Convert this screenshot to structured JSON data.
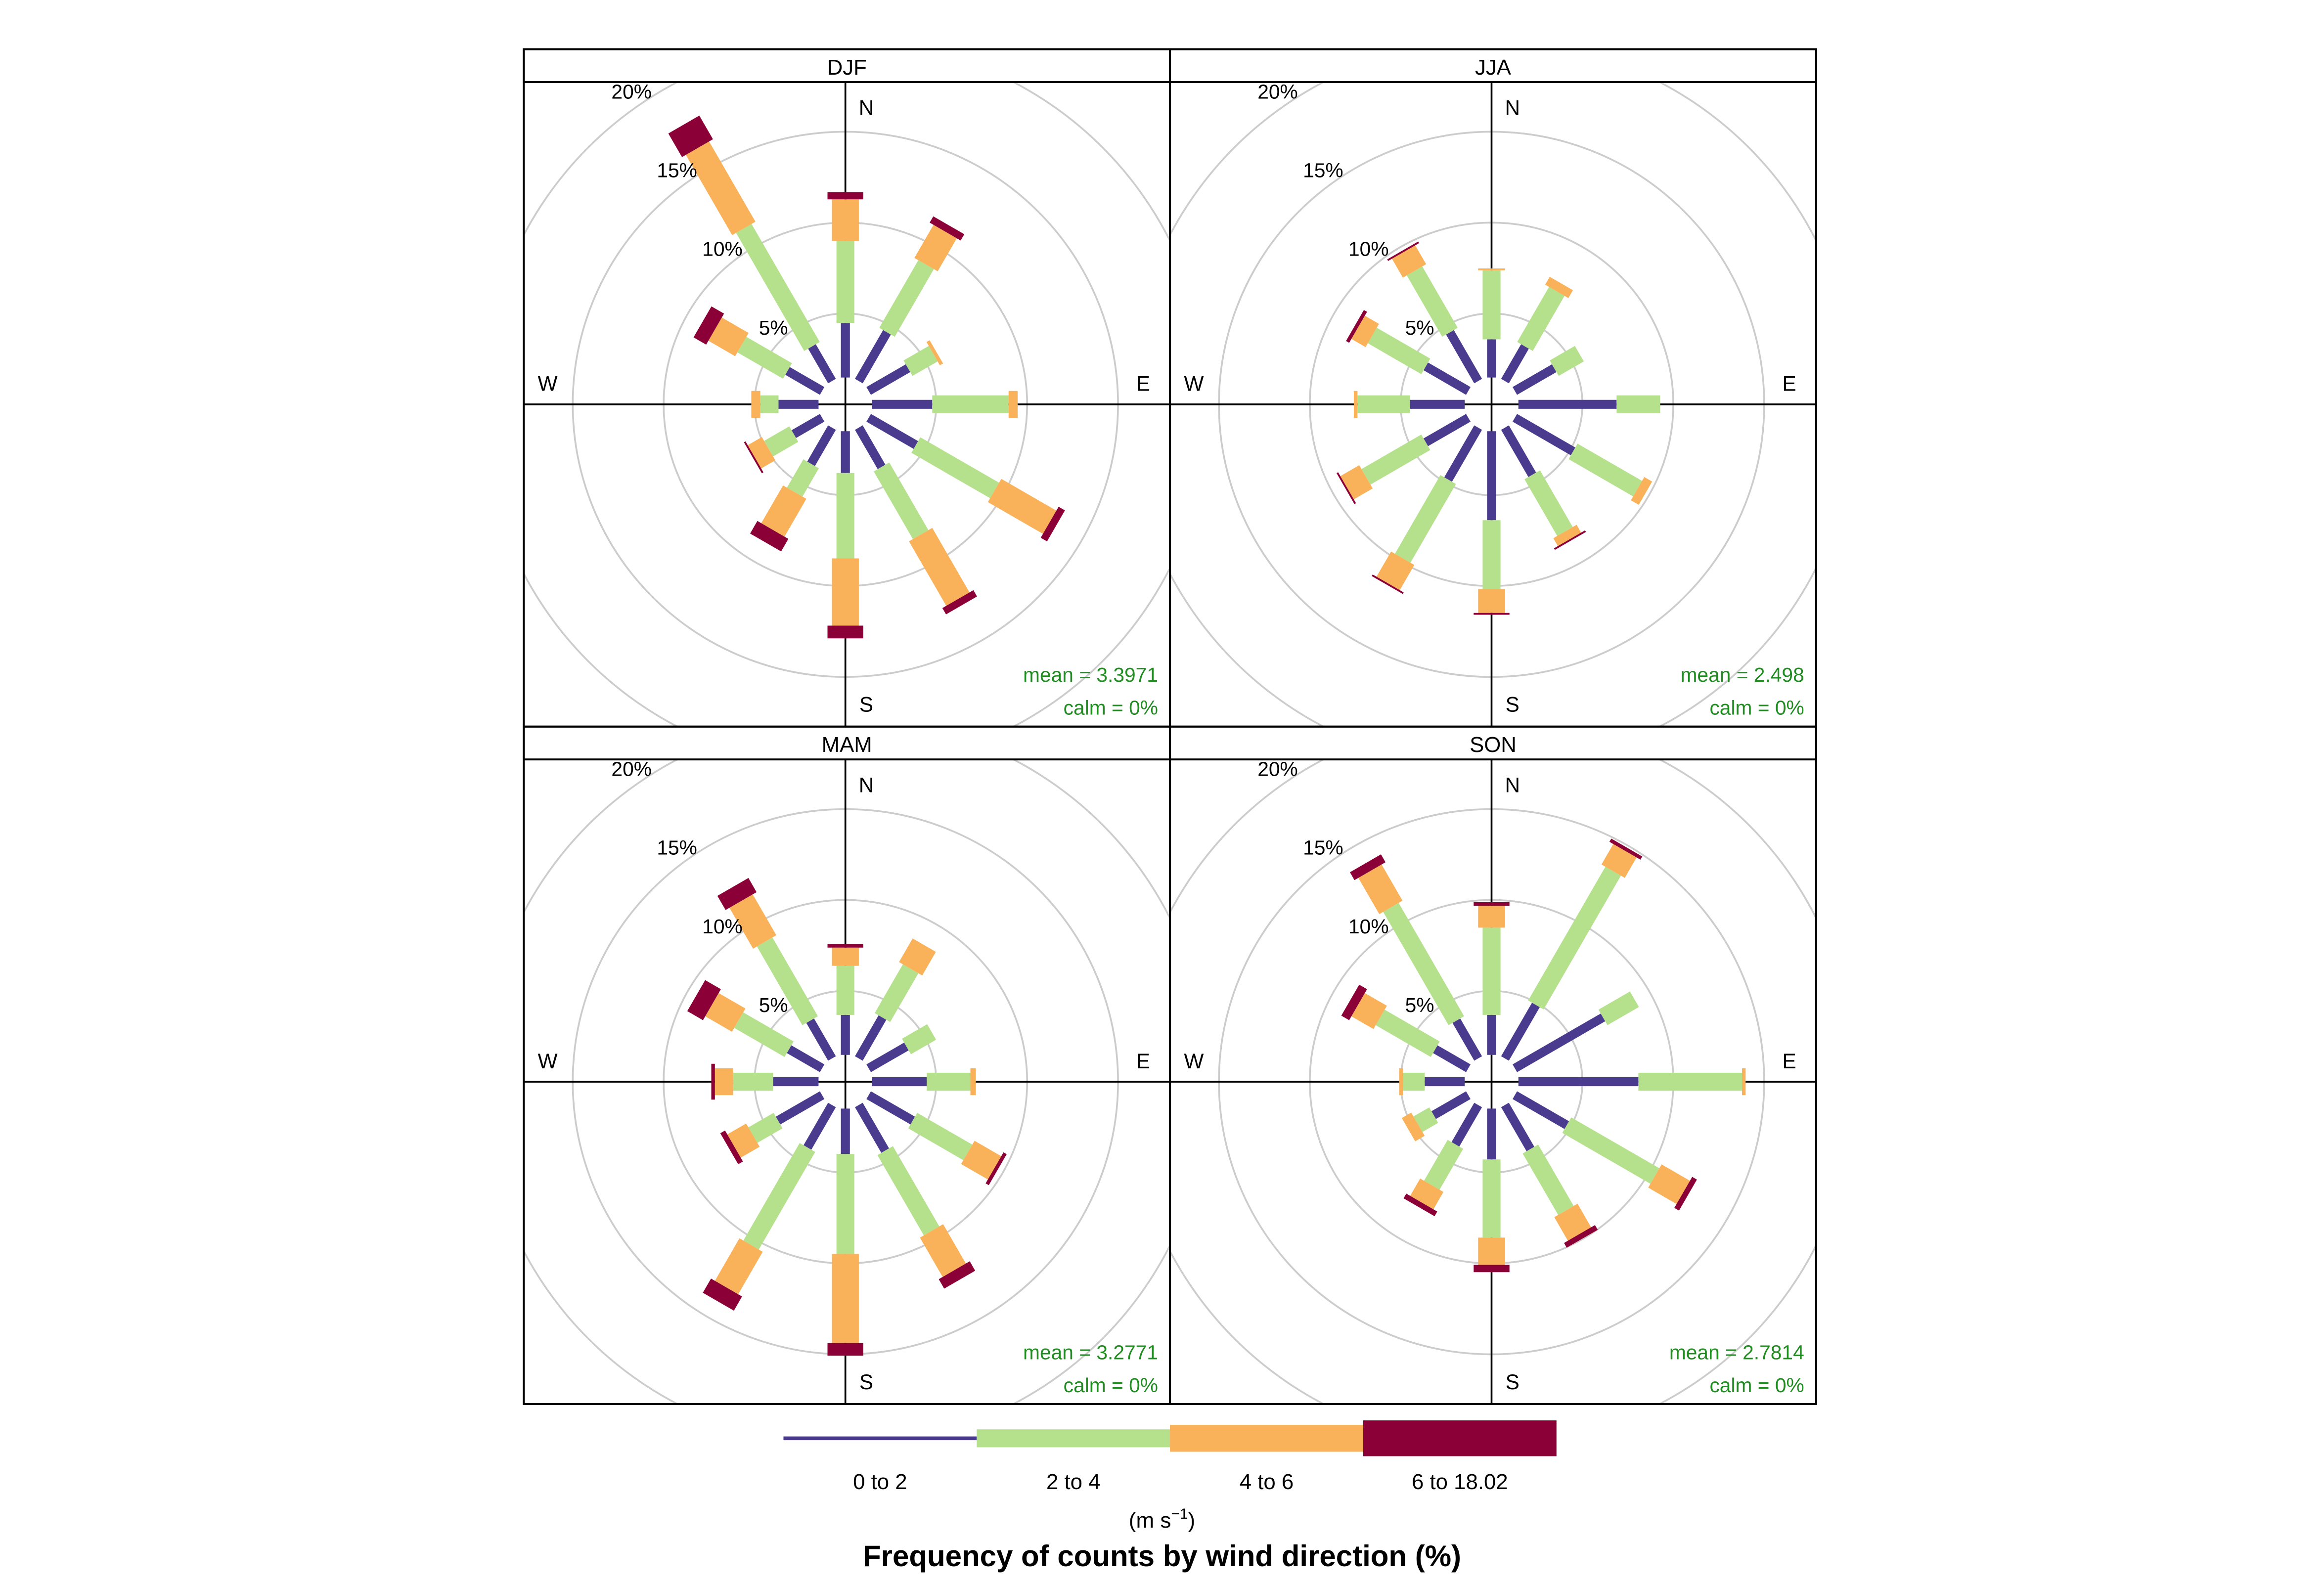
{
  "chart_data": {
    "type": "wind-rose",
    "title": "Frequency of counts by wind direction (%)",
    "units": "(m s",
    "units_superscript": "−1",
    "units_close": ")",
    "directions": [
      0,
      30,
      60,
      90,
      120,
      150,
      180,
      210,
      240,
      270,
      300,
      330
    ],
    "compass": {
      "N": "N",
      "E": "E",
      "S": "S",
      "W": "W"
    },
    "rings": [
      5,
      10,
      15,
      20
    ],
    "ring_labels": [
      "5%",
      "10%",
      "15%",
      "20%"
    ],
    "r_max": 20,
    "legend": {
      "bins": [
        {
          "label": "0 to 2",
          "color": "#4B3B8F"
        },
        {
          "label": "2 to 4",
          "color": "#B5E18D"
        },
        {
          "label": "4 to 6",
          "color": "#F9B25A"
        },
        {
          "label": "6 to 18.02",
          "color": "#8B0036"
        }
      ]
    },
    "panels": [
      {
        "name": "DJF",
        "mean_text": "mean = 3.3971",
        "calm_text": "calm = 0%",
        "cumulative": [
          [
            3.0,
            7.5,
            9.8,
            10.2
          ],
          [
            3.1,
            7.4,
            9.5,
            9.9
          ],
          [
            2.5,
            4.1,
            4.3,
            4.3
          ],
          [
            3.3,
            7.5,
            8.0,
            8.0
          ],
          [
            3.0,
            8.0,
            11.5,
            11.9
          ],
          [
            2.5,
            6.8,
            10.9,
            11.3
          ],
          [
            2.3,
            7.0,
            10.7,
            11.4
          ],
          [
            2.3,
            4.1,
            6.5,
            7.3
          ],
          [
            1.8,
            3.4,
            4.3,
            4.4
          ],
          [
            2.2,
            3.2,
            3.7,
            3.7
          ],
          [
            2.2,
            5.1,
            6.8,
            7.6
          ],
          [
            2.2,
            9.7,
            14.8,
            16.3
          ]
        ]
      },
      {
        "name": "JJA",
        "mean_text": "mean = 2.498",
        "calm_text": "calm = 0%",
        "cumulative": [
          [
            2.1,
            5.9,
            6.0,
            6.0
          ],
          [
            2.2,
            5.7,
            6.2,
            6.2
          ],
          [
            2.5,
            4.1,
            4.1,
            4.1
          ],
          [
            5.4,
            7.8,
            7.8,
            7.8
          ],
          [
            3.7,
            7.8,
            8.3,
            8.3
          ],
          [
            3.0,
            6.6,
            7.1,
            7.2
          ],
          [
            4.9,
            8.7,
            10.0,
            10.1
          ],
          [
            3.3,
            8.3,
            9.9,
            10.0
          ],
          [
            2.7,
            6.5,
            7.7,
            7.8
          ],
          [
            3.0,
            5.9,
            6.1,
            6.1
          ],
          [
            2.7,
            6.1,
            7.0,
            7.2
          ],
          [
            3.1,
            7.0,
            8.2,
            8.3
          ]
        ]
      },
      {
        "name": "MAM",
        "mean_text": "mean = 3.2771",
        "calm_text": "calm = 0%",
        "cumulative": [
          [
            2.2,
            4.9,
            5.9,
            6.1
          ],
          [
            2.6,
            5.7,
            7.2,
            7.2
          ],
          [
            2.4,
            4.0,
            4.0,
            4.0
          ],
          [
            3.0,
            5.4,
            5.7,
            5.7
          ],
          [
            2.8,
            6.3,
            8.0,
            8.2
          ],
          [
            2.9,
            8.0,
            10.5,
            11.1
          ],
          [
            2.5,
            8.0,
            12.9,
            13.6
          ],
          [
            2.7,
            8.9,
            11.6,
            12.5
          ],
          [
            2.8,
            4.4,
            5.6,
            5.9
          ],
          [
            2.5,
            4.7,
            5.7,
            5.9
          ],
          [
            2.1,
            5.3,
            7.0,
            8.0
          ],
          [
            2.4,
            7.4,
            10.0,
            10.9
          ]
        ]
      },
      {
        "name": "SON",
        "mean_text": "mean = 2.7814",
        "calm_text": "calm = 0%",
        "cumulative": [
          [
            2.2,
            7.0,
            8.2,
            8.4
          ],
          [
            3.4,
            11.9,
            13.2,
            13.4
          ],
          [
            5.6,
            7.6,
            7.6,
            7.6
          ],
          [
            6.6,
            12.3,
            12.5,
            12.5
          ],
          [
            3.3,
            8.9,
            10.7,
            11.0
          ],
          [
            2.8,
            6.7,
            8.2,
            8.5
          ],
          [
            2.8,
            7.1,
            8.6,
            9.0
          ],
          [
            2.5,
            5.1,
            6.2,
            6.5
          ],
          [
            2.2,
            3.2,
            3.8,
            3.8
          ],
          [
            2.2,
            3.4,
            3.6,
            3.6
          ],
          [
            2.1,
            5.6,
            7.0,
            7.5
          ],
          [
            2.4,
            9.6,
            11.9,
            12.4
          ]
        ]
      }
    ]
  }
}
